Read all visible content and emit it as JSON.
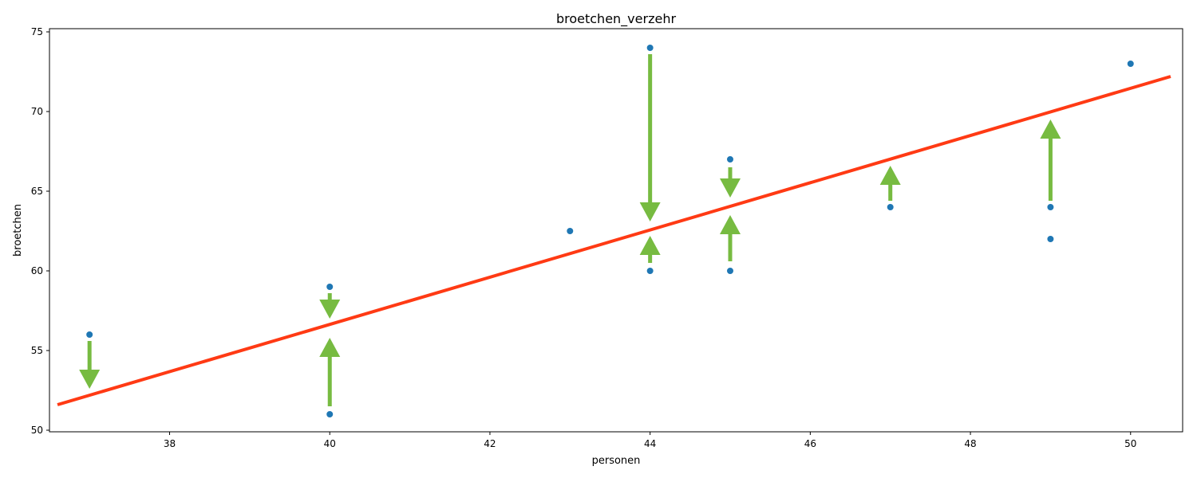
{
  "chart_data": {
    "type": "scatter",
    "title": "broetchen_verzehr",
    "xlabel": "personen",
    "ylabel": "broetchen",
    "xlim": [
      36.5,
      50.65
    ],
    "ylim": [
      49.9,
      75.2
    ],
    "xticks": [
      38,
      40,
      42,
      44,
      46,
      48,
      50
    ],
    "yticks": [
      50,
      55,
      60,
      65,
      70,
      75
    ],
    "grid": false,
    "points": [
      {
        "x": 37,
        "y": 56
      },
      {
        "x": 40,
        "y": 59
      },
      {
        "x": 40,
        "y": 51
      },
      {
        "x": 43,
        "y": 62.5
      },
      {
        "x": 44,
        "y": 74
      },
      {
        "x": 44,
        "y": 60
      },
      {
        "x": 45,
        "y": 67
      },
      {
        "x": 45,
        "y": 60
      },
      {
        "x": 47,
        "y": 64
      },
      {
        "x": 49,
        "y": 64
      },
      {
        "x": 49,
        "y": 62
      },
      {
        "x": 50,
        "y": 73
      }
    ],
    "regression_line": {
      "x": [
        36.6,
        50.5
      ],
      "y": [
        51.6,
        72.2
      ]
    },
    "residual_arrows": [
      {
        "x": 37,
        "from": 55.6,
        "to": 52.6
      },
      {
        "x": 40,
        "from": 58.6,
        "to": 57.0
      },
      {
        "x": 40,
        "from": 51.5,
        "to": 55.8
      },
      {
        "x": 44,
        "from": 73.6,
        "to": 63.1
      },
      {
        "x": 44,
        "from": 60.5,
        "to": 62.2
      },
      {
        "x": 45,
        "from": 66.5,
        "to": 64.6
      },
      {
        "x": 45,
        "from": 60.6,
        "to": 63.5
      },
      {
        "x": 47,
        "from": 64.4,
        "to": 66.6
      },
      {
        "x": 49,
        "from": 64.4,
        "to": 69.5
      }
    ],
    "colors": {
      "points": "#1f77b4",
      "regression_line": "#ff3a14",
      "arrows": "#77bb41"
    }
  }
}
